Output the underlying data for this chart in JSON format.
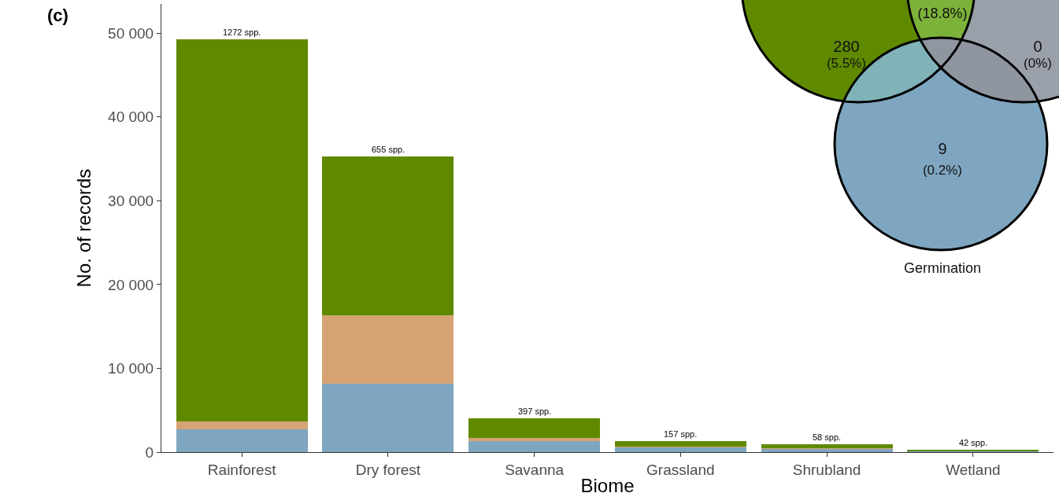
{
  "chart_data": {
    "type": "bar",
    "stacked": true,
    "xlabel": "Biome",
    "ylabel": "No. of records",
    "categories": [
      "Rainforest",
      "Dry forest",
      "Savanna",
      "Grassland",
      "Shrubland",
      "Wetland"
    ],
    "series": [
      {
        "color": "#7fa6c0",
        "values": [
          2700,
          8200,
          1300,
          600,
          400,
          100
        ]
      },
      {
        "color": "#d6a474",
        "values": [
          1000,
          8100,
          400,
          100,
          100,
          0
        ]
      },
      {
        "color": "#5f8a00",
        "values": [
          45600,
          19000,
          2300,
          600,
          400,
          200
        ]
      }
    ],
    "ylim": [
      0,
      53500
    ],
    "yticks": [
      {
        "value": 0,
        "label": "0"
      },
      {
        "value": 10000,
        "label": "10 000"
      },
      {
        "value": 20000,
        "label": "20 000"
      },
      {
        "value": 30000,
        "label": "30 000"
      },
      {
        "value": 40000,
        "label": "40 000"
      },
      {
        "value": 50000,
        "label": "50 000"
      }
    ],
    "grid": false,
    "annotations": [
      "(c)",
      {
        "text": "1272 spp.",
        "x": "Rainforest",
        "y": 49300
      },
      {
        "text": "655 spp.",
        "x": "Dry forest",
        "y": 35300
      },
      {
        "text": "397 spp.",
        "x": "Savanna",
        "y": 4000
      },
      {
        "text": "157 spp.",
        "x": "Grassland",
        "y": 1300
      },
      {
        "text": "58 spp.",
        "x": "Shrubland",
        "y": 900
      },
      {
        "text": "42 spp.",
        "x": "Wetland",
        "y": 300
      },
      "(18.8%)",
      "280",
      "(5.5%)",
      "0",
      "(0%)",
      "9",
      "(0.2%)",
      "Germination"
    ]
  }
}
